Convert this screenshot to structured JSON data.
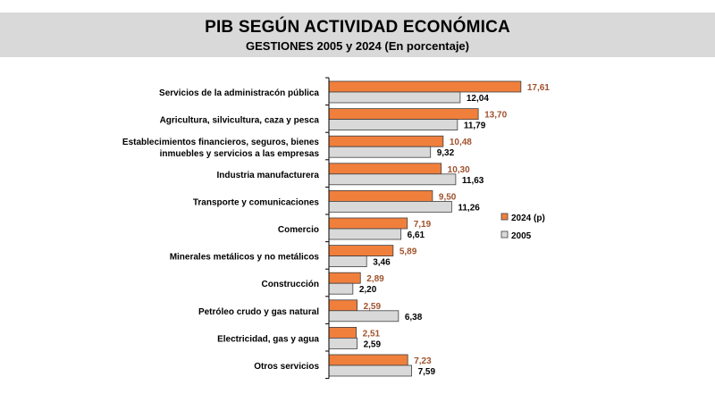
{
  "header": {
    "title": "PIB SEGÚN ACTIVIDAD ECONÓMICA",
    "subtitle": "GESTIONES 2005 y 2024 (En porcentaje)"
  },
  "chart_data": {
    "type": "bar",
    "orientation": "horizontal",
    "title": "PIB SEGÚN ACTIVIDAD ECONÓMICA",
    "subtitle": "GESTIONES 2005 y 2024 (En porcentaje)",
    "xlabel": "",
    "ylabel": "",
    "xlim": [
      0,
      20
    ],
    "grid": false,
    "legend_position": "right",
    "categories": [
      [
        "Servicios de la administracón pública"
      ],
      [
        "Agricultura, silvicultura, caza y pesca"
      ],
      [
        "Establecimientos financieros, seguros, bienes",
        "inmuebles y servicios a las empresas"
      ],
      [
        "Industria manufacturera"
      ],
      [
        "Transporte y comunicaciones"
      ],
      [
        "Comercio"
      ],
      [
        "Minerales metálicos y no metálicos"
      ],
      [
        "Construcción"
      ],
      [
        "Petróleo crudo y gas natural"
      ],
      [
        "Electricidad, gas y agua"
      ],
      [
        "Otros servicios"
      ]
    ],
    "series": [
      {
        "name": "2024 (p)",
        "color": "#f07f3c",
        "label_color": "#a0522d",
        "values": [
          17.61,
          13.7,
          10.48,
          10.3,
          9.5,
          7.19,
          5.89,
          2.89,
          2.59,
          2.51,
          7.23
        ],
        "labels": [
          "17,61",
          "13,70",
          "10,48",
          "10,30",
          "9,50",
          "7,19",
          "5,89",
          "2,89",
          "2,59",
          "2,51",
          "7,23"
        ]
      },
      {
        "name": "2005",
        "color": "#d9d9d9",
        "label_color": "#000000",
        "values": [
          12.04,
          11.79,
          9.32,
          11.63,
          11.26,
          6.61,
          3.46,
          2.2,
          6.38,
          2.59,
          7.59
        ],
        "labels": [
          "12,04",
          "11,79",
          "9,32",
          "11,63",
          "11,26",
          "6,61",
          "3,46",
          "2,20",
          "6,38",
          "2,59",
          "7,59"
        ]
      }
    ]
  }
}
